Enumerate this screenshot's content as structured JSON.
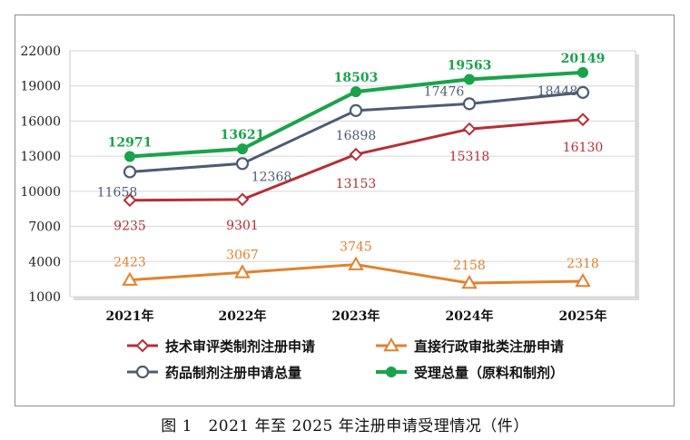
{
  "caption": "图 1　2021 年至 2025 年注册申请受理情况（件）",
  "chart_data": {
    "type": "line",
    "title": "",
    "xlabel": "",
    "ylabel": "",
    "categories": [
      "2021年",
      "2022年",
      "2023年",
      "2024年",
      "2025年"
    ],
    "ylim": [
      1000,
      22000
    ],
    "yticks": [
      1000,
      4000,
      7000,
      10000,
      13000,
      16000,
      19000,
      22000
    ],
    "grid": true,
    "legend_position": "bottom",
    "series": [
      {
        "name": "技术审评类制剂注册申请",
        "values": [
          9235,
          9301,
          13153,
          15318,
          16130
        ],
        "color": "#b72e36",
        "marker": "diamond",
        "labels": [
          "9235",
          "9301",
          "13153",
          "15318",
          "16130"
        ]
      },
      {
        "name": "直接行政审批类注册申请",
        "values": [
          2423,
          3067,
          3745,
          2158,
          2318
        ],
        "color": "#e2812d",
        "marker": "triangle",
        "labels": [
          "2423",
          "3067",
          "3745",
          "2158",
          "2318"
        ]
      },
      {
        "name": "药品制剂注册申请总量",
        "values": [
          11658,
          12368,
          16898,
          17476,
          18448
        ],
        "color": "#4c5d73",
        "marker": "circle-open",
        "labels": [
          "11658",
          "12368",
          "16898",
          "17476",
          "18448"
        ]
      },
      {
        "name": "受理总量（原料和制剂）",
        "values": [
          12971,
          13621,
          18503,
          19563,
          20149
        ],
        "color": "#1aa34a",
        "marker": "circle-filled",
        "labels": [
          "12971",
          "13621",
          "18503",
          "19563",
          "20149"
        ]
      }
    ]
  }
}
